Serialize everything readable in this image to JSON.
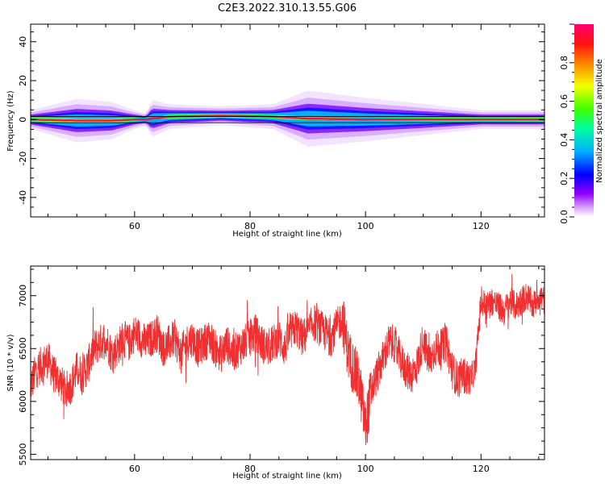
{
  "title": "C2E3.2022.310.13.55.G06",
  "colors": {
    "snr_line": "#f03030",
    "center_ridge": "#e8184a",
    "frame": "#000000"
  },
  "chart_data": [
    {
      "type": "heatmap",
      "name": "spectrogram",
      "xlabel": "Height of straight line (km)",
      "ylabel": "Frequency (Hz)",
      "xlim": [
        42,
        131
      ],
      "ylim": [
        -50,
        49
      ],
      "xticks": [
        60,
        80,
        100,
        120
      ],
      "yticks": [
        -40,
        -20,
        0,
        20,
        40
      ],
      "xtick_labels": [
        "60",
        "80",
        "100",
        "120"
      ],
      "ytick_labels": [
        "-40",
        "-20",
        "0",
        "20",
        "40"
      ],
      "colorbar": {
        "label": "Normalized spectral amplitude",
        "range": [
          0,
          1
        ],
        "ticks": [
          0.0,
          0.2,
          0.4,
          0.6,
          0.8
        ],
        "tick_labels": [
          "0.0",
          "0.2",
          "0.4",
          "0.6",
          "0.8"
        ],
        "colormap": [
          "#ffffff",
          "#e0a0ff",
          "#8000ff",
          "#0000ff",
          "#00c8ff",
          "#00ff80",
          "#80ff00",
          "#ffff00",
          "#ff8000",
          "#ff0000",
          "#ff0080"
        ]
      },
      "ridge": [
        {
          "h": 42,
          "f": 0.0,
          "width": 1.5,
          "amp": 1.0
        },
        {
          "h": 50,
          "f": -0.5,
          "width": 3.5,
          "amp": 0.7
        },
        {
          "h": 56,
          "f": -0.5,
          "width": 3.0,
          "amp": 0.75
        },
        {
          "h": 60,
          "f": 0.0,
          "width": 1.5,
          "amp": 0.95
        },
        {
          "h": 62,
          "f": 0.0,
          "width": 1.0,
          "amp": 0.9
        },
        {
          "h": 63,
          "f": 0.5,
          "width": 3.0,
          "amp": 0.4
        },
        {
          "h": 66,
          "f": 1.5,
          "width": 2.0,
          "amp": 0.9
        },
        {
          "h": 75,
          "f": 2.0,
          "width": 1.5,
          "amp": 1.0
        },
        {
          "h": 84,
          "f": 1.5,
          "width": 2.0,
          "amp": 0.85
        },
        {
          "h": 90,
          "f": 0.5,
          "width": 4.5,
          "amp": 0.6
        },
        {
          "h": 100,
          "f": 0.0,
          "width": 3.5,
          "amp": 0.6
        },
        {
          "h": 110,
          "f": 0.0,
          "width": 2.5,
          "amp": 0.75
        },
        {
          "h": 120,
          "f": 0.0,
          "width": 1.5,
          "amp": 0.95
        },
        {
          "h": 131,
          "f": 0.0,
          "width": 1.5,
          "amp": 1.0
        }
      ]
    },
    {
      "type": "line",
      "name": "snr",
      "xlabel": "Height of straight line (km)",
      "ylabel": "SNR (10 * v/v)",
      "xlim": [
        42,
        131
      ],
      "ylim": [
        5450,
        7280
      ],
      "xticks": [
        60,
        80,
        100,
        120
      ],
      "yticks": [
        5500,
        6000,
        6500,
        7000
      ],
      "xtick_labels": [
        "60",
        "80",
        "100",
        "120"
      ],
      "ytick_labels": [
        "5500",
        "6000",
        "6500",
        "7000"
      ],
      "series": [
        {
          "x": [
            42,
            43,
            44,
            45,
            46,
            47,
            48,
            49,
            50,
            51,
            52,
            53,
            54,
            55,
            56,
            57,
            58,
            59,
            60,
            61,
            62,
            63,
            64,
            65,
            66,
            67,
            68,
            69,
            70,
            71,
            72,
            73,
            74,
            75,
            76,
            77,
            78,
            79,
            80,
            81,
            82,
            83,
            84,
            85,
            86,
            87,
            88,
            89,
            90,
            91,
            92,
            93,
            94,
            95,
            96,
            97,
            98,
            99,
            100,
            101,
            102,
            103,
            104,
            105,
            106,
            107,
            108,
            109,
            110,
            111,
            112,
            113,
            114,
            115,
            116,
            117,
            118,
            119,
            120,
            121,
            122,
            123,
            124,
            125,
            126,
            127,
            128,
            129,
            130,
            131
          ],
          "y": [
            6150,
            6300,
            6350,
            6400,
            6250,
            6200,
            6100,
            6150,
            6300,
            6250,
            6350,
            6500,
            6550,
            6600,
            6450,
            6500,
            6600,
            6550,
            6650,
            6600,
            6550,
            6600,
            6650,
            6500,
            6550,
            6600,
            6450,
            6550,
            6600,
            6500,
            6550,
            6600,
            6500,
            6450,
            6550,
            6450,
            6500,
            6550,
            6600,
            6650,
            6550,
            6500,
            6550,
            6600,
            6500,
            6650,
            6700,
            6600,
            6650,
            6750,
            6700,
            6650,
            6600,
            6700,
            6800,
            6450,
            6300,
            6150,
            5750,
            6100,
            6250,
            6400,
            6550,
            6550,
            6400,
            6300,
            6250,
            6350,
            6600,
            6350,
            6500,
            6500,
            6550,
            6300,
            6200,
            6250,
            6200,
            6300,
            6950,
            6900,
            6950,
            6900,
            6850,
            6950,
            6900,
            6950,
            7000,
            6900,
            7000,
            6950
          ]
        }
      ]
    }
  ]
}
